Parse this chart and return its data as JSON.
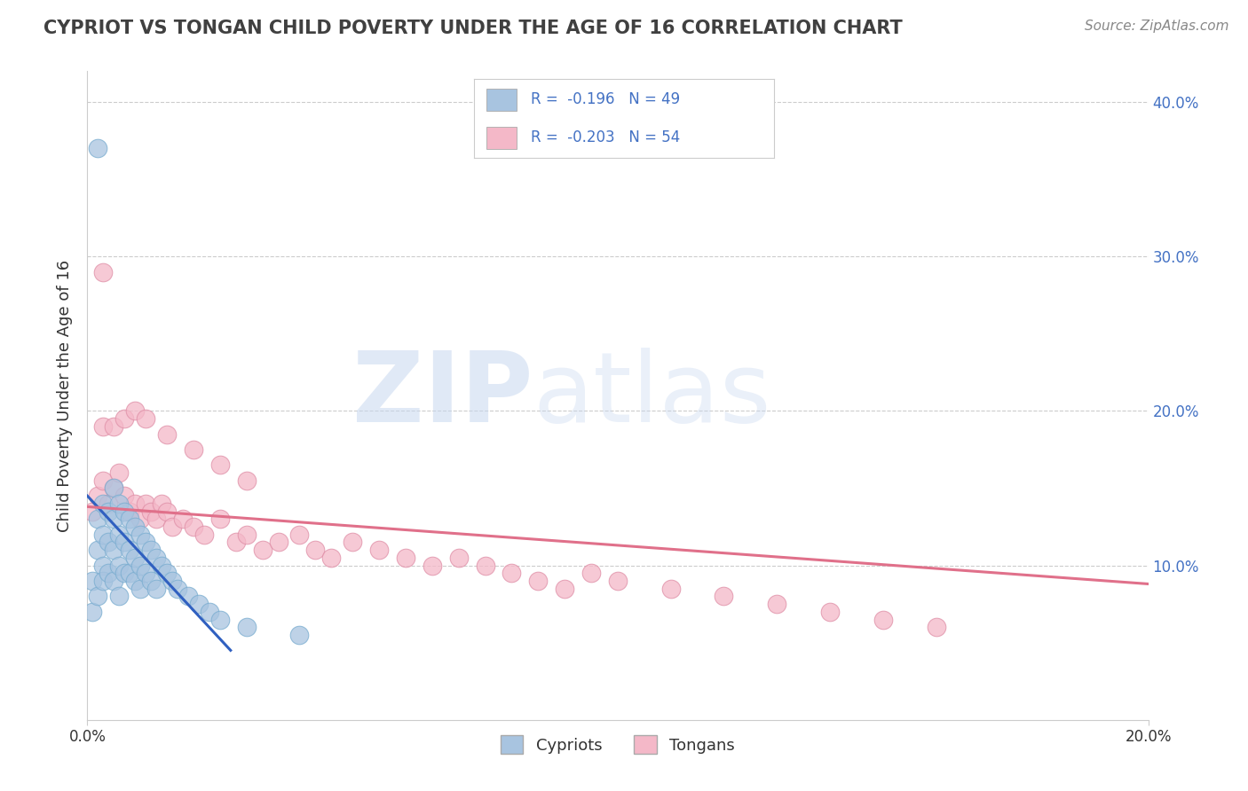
{
  "title": "CYPRIOT VS TONGAN CHILD POVERTY UNDER THE AGE OF 16 CORRELATION CHART",
  "source": "Source: ZipAtlas.com",
  "ylabel": "Child Poverty Under the Age of 16",
  "xlim": [
    0.0,
    0.2
  ],
  "ylim": [
    0.0,
    0.42
  ],
  "xticks": [
    0.0,
    0.2
  ],
  "xtick_labels_shown": [
    "0.0%",
    "20.0%"
  ],
  "yticks": [
    0.0,
    0.1,
    0.2,
    0.3,
    0.4
  ],
  "ytick_labels": [
    "",
    "10.0%",
    "20.0%",
    "30.0%",
    "40.0%"
  ],
  "cypriot_color": "#a8c4e0",
  "cypriot_edge_color": "#7aadd0",
  "tongan_color": "#f4b8c8",
  "tongan_edge_color": "#e090a8",
  "cypriot_line_color": "#3060c0",
  "tongan_line_color": "#e0708a",
  "r_cypriot": -0.196,
  "n_cypriot": 49,
  "r_tongan": -0.203,
  "n_tongan": 54,
  "legend_label_cypriot": "Cypriots",
  "legend_label_tongan": "Tongans",
  "background_color": "#ffffff",
  "grid_color": "#cccccc",
  "title_color": "#404040",
  "axis_color": "#333333",
  "source_color": "#888888",
  "right_tick_color": "#4472c4",
  "cypriot_x": [
    0.001,
    0.001,
    0.002,
    0.002,
    0.002,
    0.003,
    0.003,
    0.003,
    0.003,
    0.004,
    0.004,
    0.004,
    0.005,
    0.005,
    0.005,
    0.005,
    0.006,
    0.006,
    0.006,
    0.006,
    0.007,
    0.007,
    0.007,
    0.008,
    0.008,
    0.008,
    0.009,
    0.009,
    0.009,
    0.01,
    0.01,
    0.01,
    0.011,
    0.011,
    0.012,
    0.012,
    0.013,
    0.013,
    0.014,
    0.015,
    0.016,
    0.017,
    0.019,
    0.021,
    0.023,
    0.025,
    0.03,
    0.04,
    0.002
  ],
  "cypriot_y": [
    0.09,
    0.07,
    0.13,
    0.11,
    0.08,
    0.14,
    0.12,
    0.1,
    0.09,
    0.135,
    0.115,
    0.095,
    0.15,
    0.13,
    0.11,
    0.09,
    0.14,
    0.12,
    0.1,
    0.08,
    0.135,
    0.115,
    0.095,
    0.13,
    0.11,
    0.095,
    0.125,
    0.105,
    0.09,
    0.12,
    0.1,
    0.085,
    0.115,
    0.095,
    0.11,
    0.09,
    0.105,
    0.085,
    0.1,
    0.095,
    0.09,
    0.085,
    0.08,
    0.075,
    0.07,
    0.065,
    0.06,
    0.055,
    0.37
  ],
  "tongan_x": [
    0.001,
    0.002,
    0.003,
    0.004,
    0.005,
    0.006,
    0.007,
    0.008,
    0.009,
    0.01,
    0.011,
    0.012,
    0.013,
    0.014,
    0.015,
    0.016,
    0.018,
    0.02,
    0.022,
    0.025,
    0.028,
    0.03,
    0.033,
    0.036,
    0.04,
    0.043,
    0.046,
    0.05,
    0.055,
    0.06,
    0.065,
    0.07,
    0.075,
    0.08,
    0.085,
    0.09,
    0.095,
    0.1,
    0.11,
    0.12,
    0.13,
    0.14,
    0.15,
    0.16,
    0.003,
    0.005,
    0.007,
    0.009,
    0.011,
    0.015,
    0.02,
    0.025,
    0.03,
    0.003
  ],
  "tongan_y": [
    0.135,
    0.145,
    0.155,
    0.14,
    0.15,
    0.16,
    0.145,
    0.135,
    0.14,
    0.13,
    0.14,
    0.135,
    0.13,
    0.14,
    0.135,
    0.125,
    0.13,
    0.125,
    0.12,
    0.13,
    0.115,
    0.12,
    0.11,
    0.115,
    0.12,
    0.11,
    0.105,
    0.115,
    0.11,
    0.105,
    0.1,
    0.105,
    0.1,
    0.095,
    0.09,
    0.085,
    0.095,
    0.09,
    0.085,
    0.08,
    0.075,
    0.07,
    0.065,
    0.06,
    0.19,
    0.19,
    0.195,
    0.2,
    0.195,
    0.185,
    0.175,
    0.165,
    0.155,
    0.29
  ],
  "cypriot_line_x": [
    0.0,
    0.027
  ],
  "cypriot_line_y": [
    0.145,
    0.045
  ],
  "tongan_line_x": [
    0.0,
    0.2
  ],
  "tongan_line_y": [
    0.138,
    0.088
  ]
}
